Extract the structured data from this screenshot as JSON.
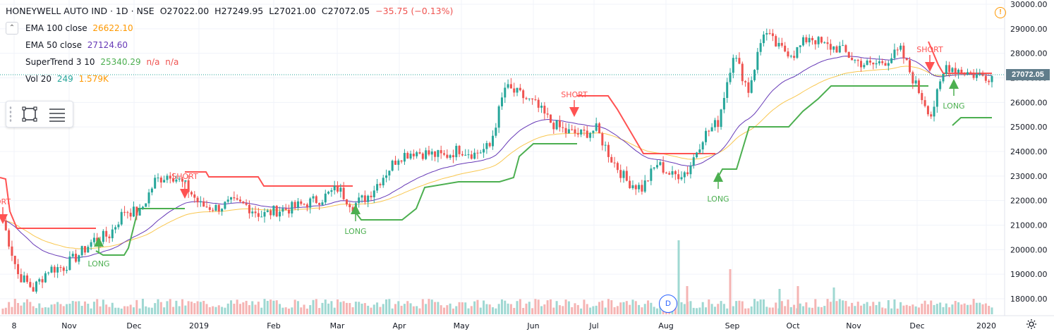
{
  "header": {
    "symbol": "HONEYWELL AUTO IND · 1D · NSE",
    "open_label": "O",
    "open": "27022.00",
    "high_label": "H",
    "high": "27249.95",
    "low_label": "L",
    "low": "27021.00",
    "close_label": "C",
    "close": "27072.05",
    "change": "−35.75 (−0.13%)"
  },
  "indicators": [
    {
      "name": "EMA 100 close",
      "value": "26622.10",
      "color": "#ff9800"
    },
    {
      "name": "EMA 50 close",
      "value": "27124.60",
      "color": "#673ab7"
    },
    {
      "name": "SuperTrend 3 10",
      "value": "25340.29",
      "extra1": "n/a",
      "extra2": "n/a",
      "color": "#4caf50",
      "extra_color": "#ef5350"
    },
    {
      "name": "Vol 20",
      "value": "249",
      "extra1": "1.579K",
      "color": "#26a69a",
      "extra_color": "#ff9800"
    }
  ],
  "price_badge": "27072.05",
  "y_ticks": [
    "30000.00",
    "29000.00",
    "28000.00",
    "27000.00",
    "26000.00",
    "25000.00",
    "24000.00",
    "23000.00",
    "22000.00",
    "21000.00",
    "20000.00",
    "19000.00",
    "18000.00"
  ],
  "x_ticks": [
    "8",
    "Nov",
    "Dec",
    "2019",
    "Feb",
    "Mar",
    "Apr",
    "May",
    "Jun",
    "Jul",
    "Aug",
    "Sep",
    "Oct",
    "Nov",
    "Dec",
    "2020"
  ],
  "event_badge": "D",
  "signals": [
    {
      "label": "ORT",
      "type": "short"
    },
    {
      "label": "LONG",
      "type": "long"
    },
    {
      "label": "SHORT",
      "type": "short"
    },
    {
      "label": "LONG",
      "type": "long"
    },
    {
      "label": "SHORT",
      "type": "short"
    },
    {
      "label": "LONG",
      "type": "long"
    },
    {
      "label": "SHORT",
      "type": "short"
    },
    {
      "label": "LONG",
      "type": "long"
    }
  ],
  "chart_data": {
    "type": "candlestick",
    "ylim": [
      17600,
      30200
    ],
    "close_series": [
      [
        "2018-10-08",
        21200
      ],
      [
        "2018-10-15",
        19000
      ],
      [
        "2018-10-22",
        18400
      ],
      [
        "2018-10-29",
        19200
      ],
      [
        "2018-11-05",
        19300
      ],
      [
        "2018-11-12",
        19800
      ],
      [
        "2018-11-19",
        20400
      ],
      [
        "2018-11-26",
        20600
      ],
      [
        "2018-12-03",
        21600
      ],
      [
        "2018-12-10",
        21500
      ],
      [
        "2018-12-17",
        22800
      ],
      [
        "2018-12-24",
        23100
      ],
      [
        "2018-12-31",
        22600
      ],
      [
        "2019-01-07",
        21800
      ],
      [
        "2019-01-14",
        21700
      ],
      [
        "2019-01-21",
        21900
      ],
      [
        "2019-01-28",
        21800
      ],
      [
        "2019-02-04",
        21400
      ],
      [
        "2019-02-11",
        21600
      ],
      [
        "2019-02-18",
        21700
      ],
      [
        "2019-02-25",
        21900
      ],
      [
        "2019-03-04",
        22100
      ],
      [
        "2019-03-11",
        22500
      ],
      [
        "2019-03-18",
        21800
      ],
      [
        "2019-03-25",
        22200
      ],
      [
        "2019-04-01",
        23000
      ],
      [
        "2019-04-08",
        23800
      ],
      [
        "2019-04-15",
        24000
      ],
      [
        "2019-04-22",
        23900
      ],
      [
        "2019-04-29",
        23800
      ],
      [
        "2019-05-06",
        24100
      ],
      [
        "2019-05-13",
        23900
      ],
      [
        "2019-05-20",
        24200
      ],
      [
        "2019-05-27",
        26600
      ],
      [
        "2019-06-03",
        26300
      ],
      [
        "2019-06-10",
        25900
      ],
      [
        "2019-06-17",
        25200
      ],
      [
        "2019-06-24",
        24800
      ],
      [
        "2019-07-01",
        24700
      ],
      [
        "2019-07-08",
        24900
      ],
      [
        "2019-07-15",
        23700
      ],
      [
        "2019-07-22",
        22800
      ],
      [
        "2019-07-29",
        22500
      ],
      [
        "2019-08-05",
        23500
      ],
      [
        "2019-08-12",
        23000
      ],
      [
        "2019-08-19",
        23200
      ],
      [
        "2019-08-26",
        24600
      ],
      [
        "2019-09-02",
        25200
      ],
      [
        "2019-09-09",
        28000
      ],
      [
        "2019-09-16",
        26500
      ],
      [
        "2019-09-23",
        28900
      ],
      [
        "2019-09-30",
        28200
      ],
      [
        "2019-10-07",
        28000
      ],
      [
        "2019-10-14",
        28700
      ],
      [
        "2019-10-21",
        28300
      ],
      [
        "2019-10-28",
        28200
      ],
      [
        "2019-11-04",
        27700
      ],
      [
        "2019-11-11",
        27500
      ],
      [
        "2019-11-18",
        27700
      ],
      [
        "2019-11-25",
        28100
      ],
      [
        "2019-12-02",
        26700
      ],
      [
        "2019-12-09",
        25500
      ],
      [
        "2019-12-16",
        27500
      ],
      [
        "2019-12-23",
        27300
      ],
      [
        "2019-12-30",
        27100
      ],
      [
        "2020-01-06",
        27072
      ]
    ],
    "volume_spikes": [
      [
        "2019-08-02",
        20500
      ],
      [
        "2019-08-23",
        19200
      ],
      [
        "2019-08-09",
        18500
      ],
      [
        "2019-09-16",
        18400
      ],
      [
        "2019-10-21",
        18400
      ]
    ]
  }
}
